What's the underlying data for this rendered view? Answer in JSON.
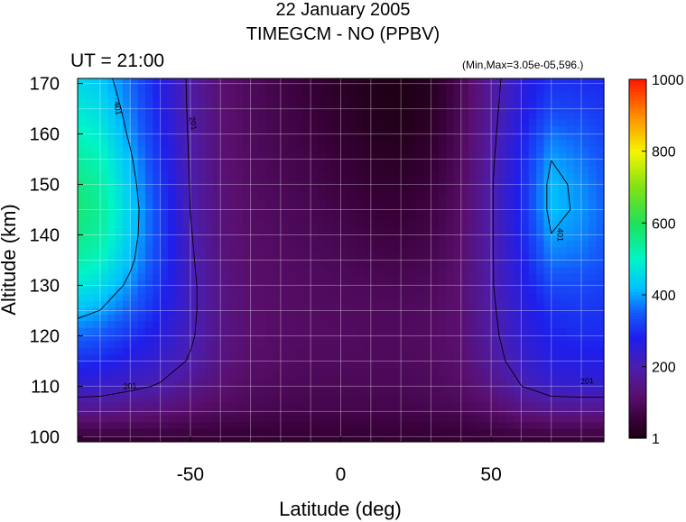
{
  "title": "22 January 2005",
  "subtitle": "TIMEGCM - NO (PPBV)",
  "ut_label": "UT = 21:00",
  "minmax_label": "(Min,Max=3.05e-05,596.)",
  "chart_data": {
    "type": "heatmap",
    "title": "22 January 2005",
    "subtitle": "TIMEGCM - NO (PPBV)",
    "xlabel": "Latitude (deg)",
    "ylabel": "Altitude (km)",
    "xlim": [
      -87.5,
      87.5
    ],
    "ylim": [
      99,
      171
    ],
    "x_ticks": [
      -50,
      0,
      50
    ],
    "x_tick_labels": [
      "-50",
      "0",
      "50"
    ],
    "y_ticks": [
      100,
      110,
      120,
      130,
      140,
      150,
      160,
      170
    ],
    "y_tick_labels": [
      "100",
      "110",
      "120",
      "130",
      "140",
      "150",
      "160",
      "170"
    ],
    "colorbar": {
      "min": 1,
      "max": 1000,
      "ticks": [
        1,
        200,
        400,
        600,
        800,
        1000
      ],
      "tick_labels": [
        "1",
        "200",
        "400",
        "600",
        "800",
        "1000"
      ]
    },
    "contour_labels": [
      "401",
      "201",
      "201",
      "401",
      "201"
    ],
    "grid": true,
    "latitudes": [
      -87.5,
      -80,
      -70,
      -60,
      -50,
      -40,
      -30,
      -20,
      -10,
      0,
      10,
      20,
      30,
      40,
      50,
      60,
      70,
      80,
      87.5
    ],
    "altitudes": [
      99,
      105,
      110,
      115,
      120,
      125,
      130,
      135,
      140,
      145,
      150,
      155,
      160,
      165,
      171
    ],
    "values": [
      [
        40,
        40,
        40,
        40,
        40,
        40,
        40,
        40,
        40,
        40,
        40,
        40,
        40,
        40,
        40,
        40,
        40,
        40,
        40
      ],
      [
        150,
        150,
        140,
        130,
        110,
        95,
        85,
        78,
        75,
        75,
        75,
        75,
        78,
        85,
        105,
        135,
        150,
        150,
        150
      ],
      [
        240,
        235,
        215,
        195,
        160,
        125,
        105,
        95,
        90,
        90,
        90,
        90,
        95,
        110,
        150,
        200,
        235,
        240,
        240
      ],
      [
        300,
        290,
        260,
        235,
        195,
        145,
        115,
        105,
        100,
        100,
        98,
        98,
        102,
        120,
        175,
        230,
        265,
        270,
        270
      ],
      [
        360,
        345,
        305,
        260,
        210,
        150,
        120,
        110,
        105,
        105,
        100,
        100,
        105,
        125,
        185,
        245,
        285,
        295,
        295
      ],
      [
        420,
        400,
        350,
        285,
        215,
        150,
        120,
        110,
        105,
        103,
        100,
        98,
        103,
        125,
        190,
        255,
        300,
        310,
        305
      ],
      [
        480,
        455,
        385,
        300,
        215,
        150,
        118,
        108,
        102,
        98,
        92,
        88,
        95,
        125,
        195,
        265,
        330,
        330,
        320
      ],
      [
        530,
        505,
        415,
        315,
        210,
        145,
        115,
        105,
        98,
        90,
        80,
        75,
        85,
        120,
        195,
        275,
        370,
        360,
        340
      ],
      [
        560,
        535,
        430,
        320,
        205,
        140,
        112,
        100,
        92,
        80,
        68,
        60,
        75,
        115,
        195,
        285,
        400,
        380,
        350
      ],
      [
        575,
        545,
        435,
        320,
        200,
        138,
        108,
        95,
        85,
        70,
        55,
        48,
        65,
        110,
        195,
        290,
        420,
        390,
        355
      ],
      [
        565,
        535,
        425,
        310,
        198,
        135,
        105,
        90,
        78,
        60,
        45,
        38,
        55,
        105,
        195,
        290,
        420,
        385,
        350
      ],
      [
        540,
        515,
        410,
        300,
        195,
        132,
        102,
        85,
        70,
        52,
        35,
        25,
        45,
        100,
        190,
        285,
        400,
        370,
        340
      ],
      [
        510,
        485,
        390,
        290,
        192,
        130,
        100,
        80,
        62,
        42,
        25,
        15,
        35,
        95,
        185,
        275,
        370,
        350,
        325
      ],
      [
        480,
        460,
        375,
        280,
        190,
        128,
        98,
        75,
        55,
        35,
        18,
        8,
        25,
        90,
        180,
        265,
        330,
        320,
        310
      ],
      [
        450,
        430,
        360,
        275,
        188,
        126,
        95,
        70,
        48,
        28,
        12,
        3,
        18,
        85,
        175,
        255,
        300,
        295,
        290
      ]
    ]
  }
}
